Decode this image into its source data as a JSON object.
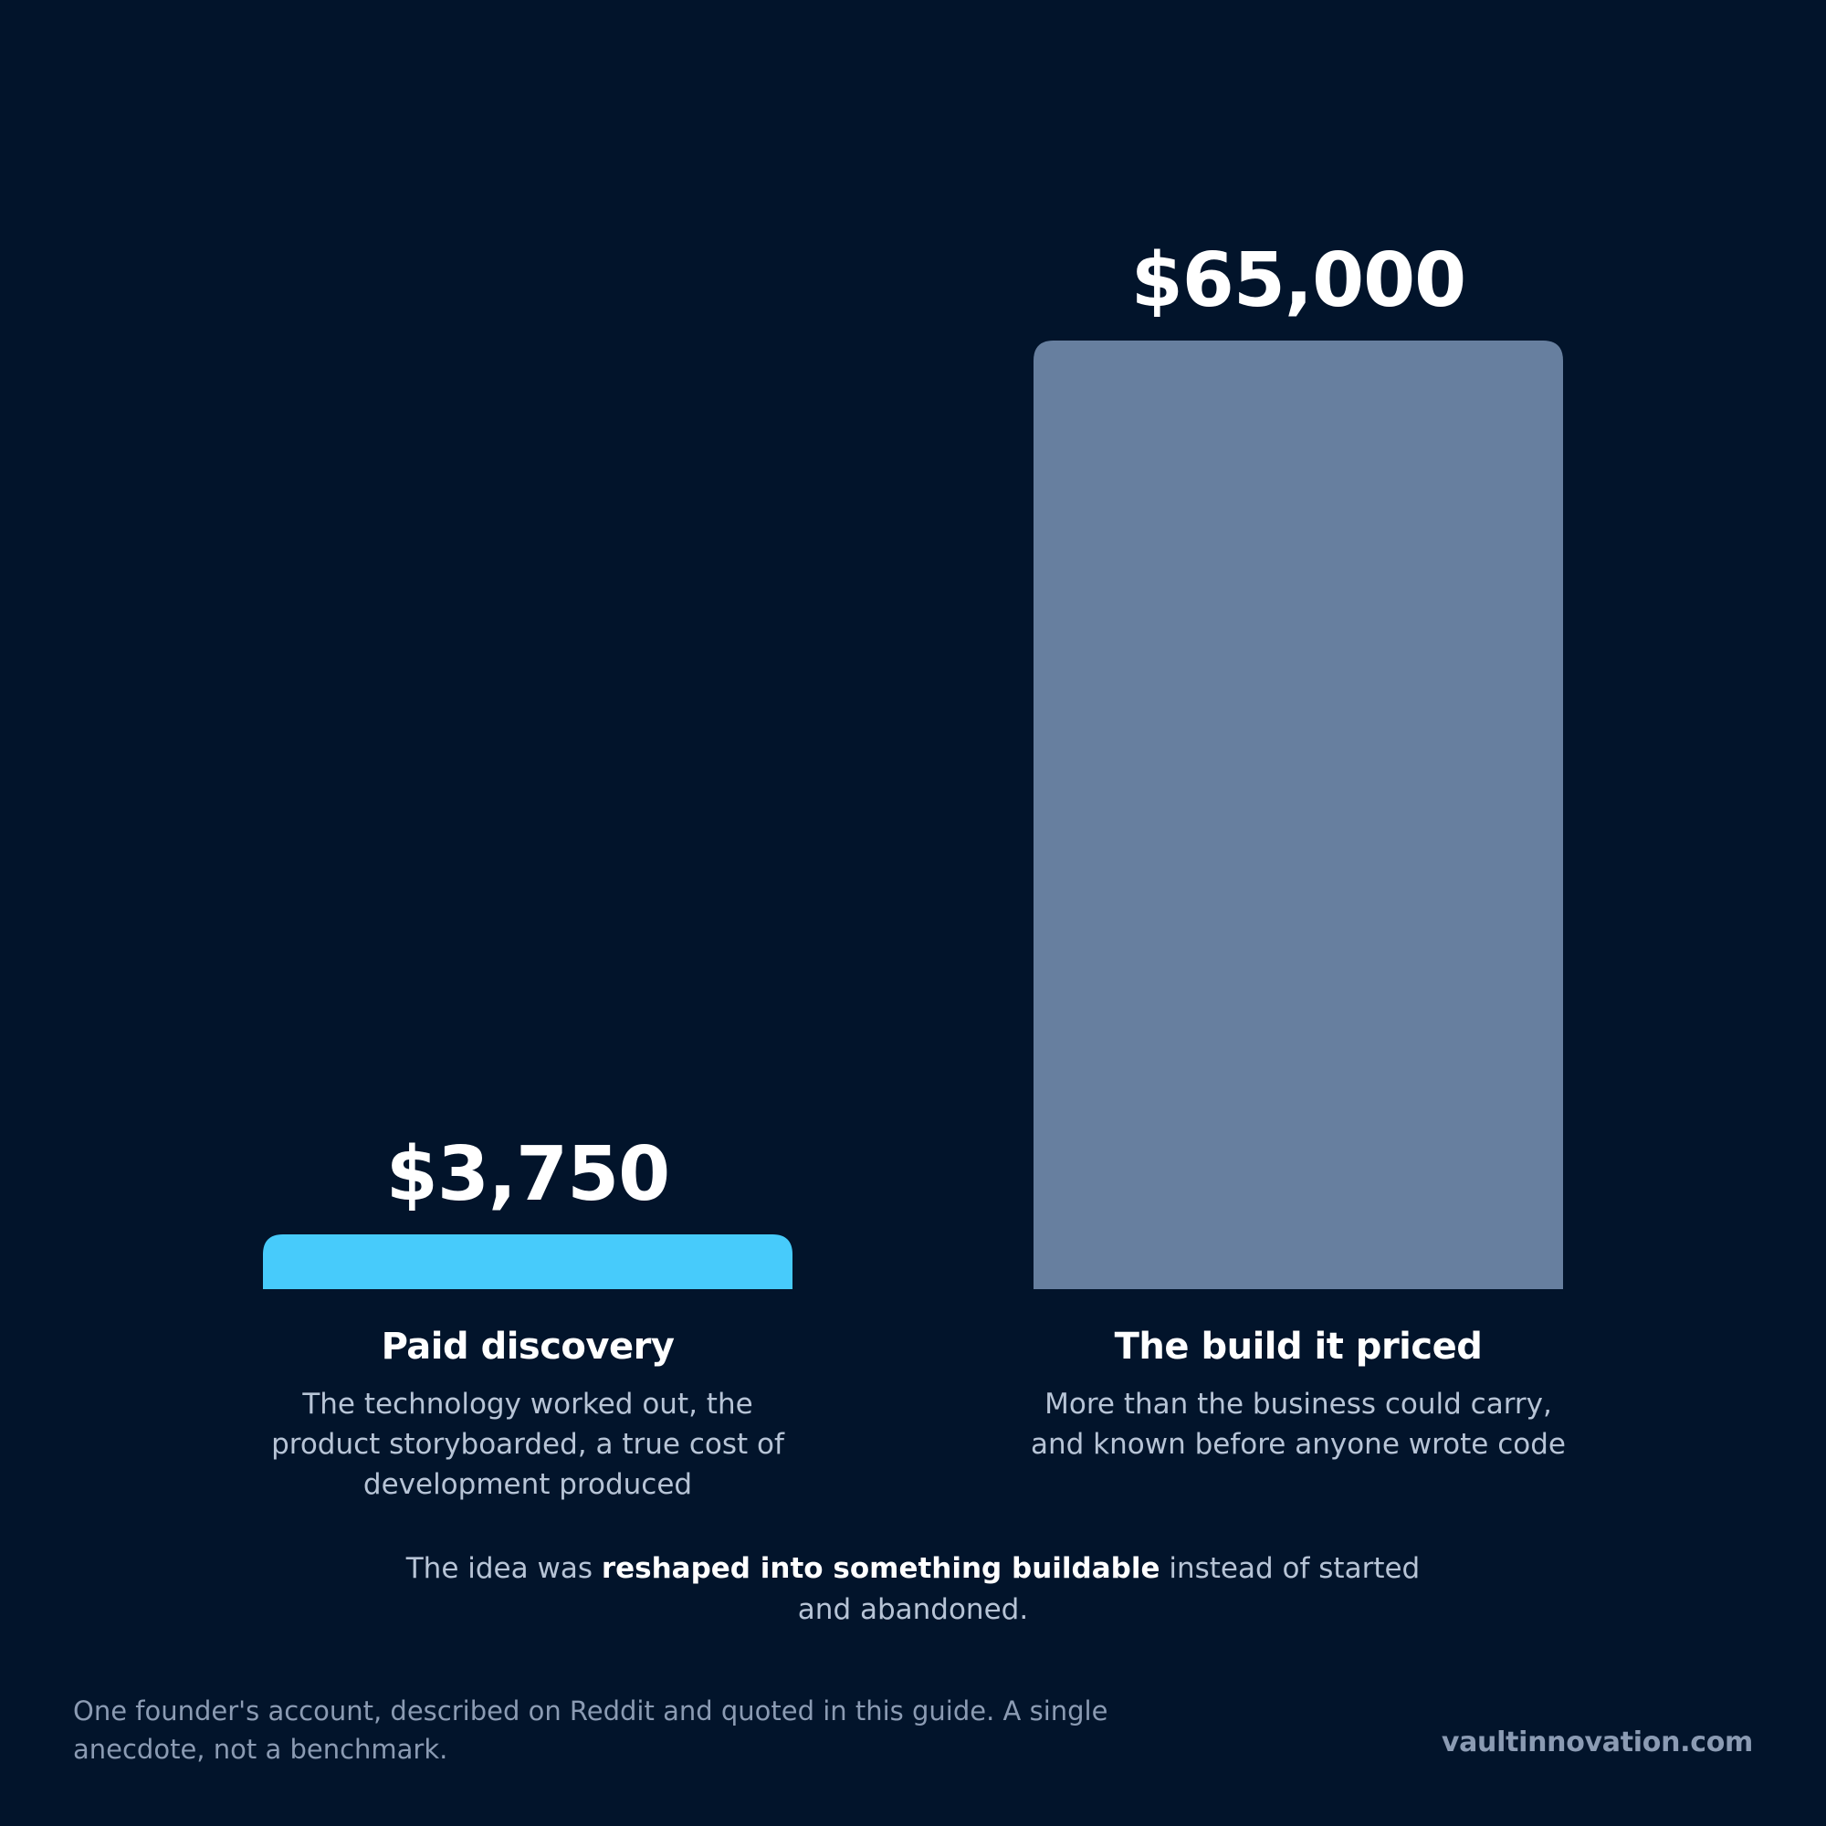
{
  "colors": {
    "background": "#02142b",
    "discovery_bar": "#47cbfb",
    "build_bar": "#677f9f",
    "text_primary": "#ffffff",
    "text_secondary": "#b7c4d6",
    "text_muted": "#8b9bb3"
  },
  "chart_data": {
    "type": "bar",
    "categories": [
      "Paid discovery",
      "The build it priced"
    ],
    "values": [
      3750,
      65000
    ],
    "value_labels": [
      "$3,750",
      "$65,000"
    ],
    "descriptions": [
      [
        "The technology worked out, the",
        "product storyboarded, a true cost of",
        "development produced"
      ],
      [
        "More than the business could carry,",
        "and known before anyone wrote code"
      ]
    ],
    "bar_colors": [
      "#47cbfb",
      "#677f9f"
    ],
    "ylim": [
      0,
      65000
    ],
    "grid": false,
    "legend": "none"
  },
  "summary": {
    "before": "The idea was ",
    "emphasis": "reshaped into something buildable",
    "after": " instead of started and abandoned."
  },
  "footnote": "One founder's account, described on Reddit and quoted in this guide. A single anecdote, not a benchmark.",
  "brand": "vaultinnovation.com"
}
